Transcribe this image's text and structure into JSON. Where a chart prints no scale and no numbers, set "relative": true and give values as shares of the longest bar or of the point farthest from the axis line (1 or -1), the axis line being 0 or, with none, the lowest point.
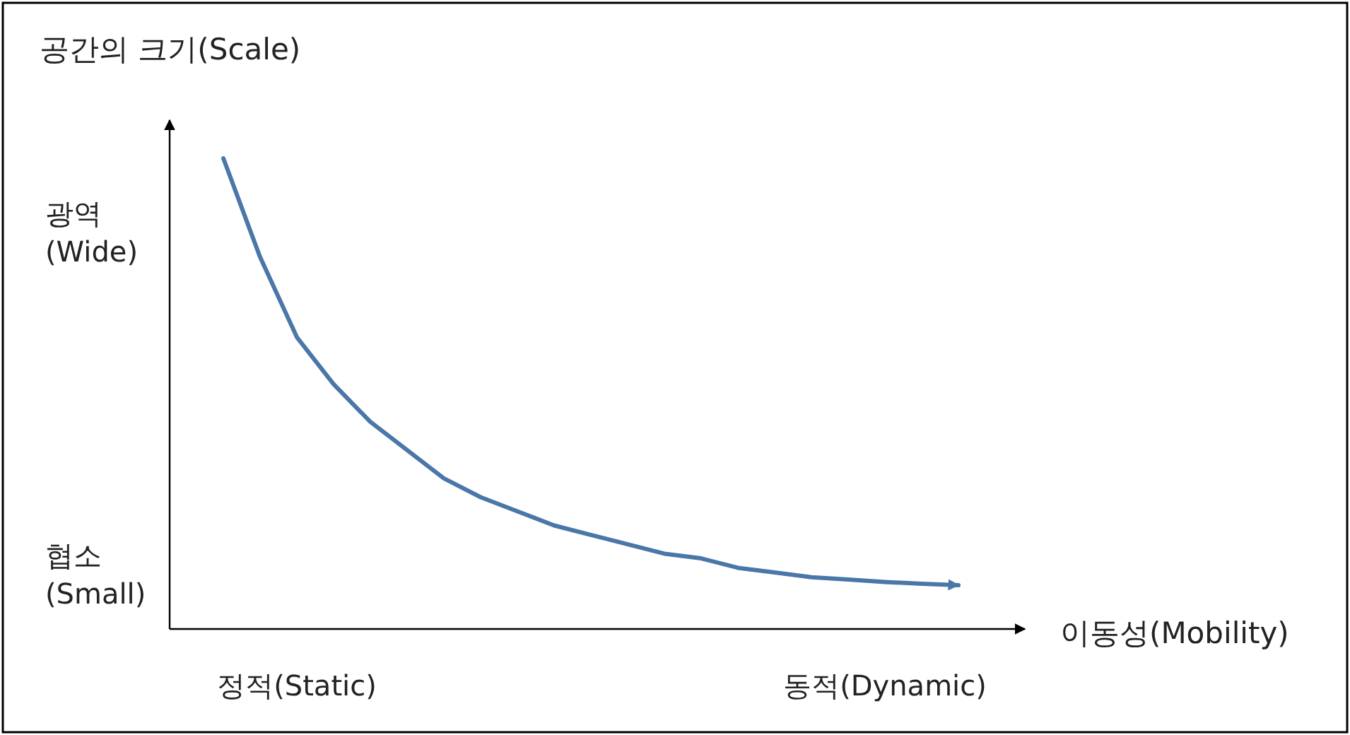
{
  "chart_data": {
    "type": "line",
    "relative": true,
    "xlabel": "이동성(Mobility)",
    "ylabel": "공간의 크기(Scale)",
    "categories": [
      null,
      null,
      "정적(Static)",
      null,
      null,
      null,
      null,
      null,
      null,
      null,
      null,
      null,
      null,
      null,
      null,
      null,
      null,
      null,
      "동적(Dynamic)",
      null,
      null
    ],
    "series": [
      {
        "color": "#4a76a8",
        "values": [
          1.0,
          0.79,
          0.62,
          0.52,
          0.44,
          0.38,
          0.32,
          0.28,
          0.25,
          0.22,
          0.2,
          0.18,
          0.16,
          0.15,
          0.13,
          0.12,
          0.11,
          0.105,
          0.1,
          0.096,
          0.093
        ]
      }
    ],
    "annotations": [
      "광역\n(Wide)",
      "협소\n(Small)"
    ],
    "grid": false,
    "marker": "none",
    "line_style": "solid"
  }
}
